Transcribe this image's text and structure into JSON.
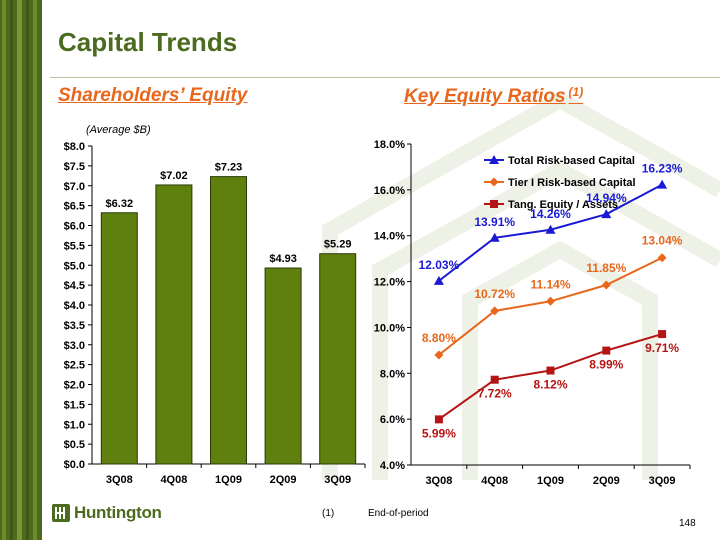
{
  "page": {
    "title": "Capital Trends",
    "page_number": "148",
    "footnote_marker": "(1)",
    "footnote_text": "End-of-period",
    "logo_text": "Huntington"
  },
  "colors": {
    "olive": "#5c7a1a",
    "bar_fill": "#5f7f0e",
    "title_green": "#4b6b1e",
    "orange": "#e8671c",
    "navy": "#1a1ad6",
    "dark_red": "#b51414",
    "band_green": "#4d6a1c"
  },
  "left_panel": {
    "heading": "Shareholders’ Equity",
    "subtitle": "(Average $B)"
  },
  "right_panel": {
    "heading": "Key Equity Ratios",
    "heading_sup": "(1)"
  },
  "chart_data": [
    {
      "type": "bar",
      "title": "Shareholders’ Equity",
      "subtitle": "(Average $B)",
      "categories": [
        "3Q08",
        "4Q08",
        "1Q09",
        "2Q09",
        "3Q09"
      ],
      "values": [
        6.32,
        7.02,
        7.23,
        4.93,
        5.29
      ],
      "data_labels": [
        "$6.32",
        "$7.02",
        "$7.23",
        "$4.93",
        "$5.29"
      ],
      "ylim": [
        0,
        8.0
      ],
      "yticks": [
        0,
        0.5,
        1.0,
        1.5,
        2.0,
        2.5,
        3.0,
        3.5,
        4.0,
        4.5,
        5.0,
        5.5,
        6.0,
        6.5,
        7.0,
        7.5,
        8.0
      ],
      "ytick_labels": [
        "$0.0",
        "$0.5",
        "$1.0",
        "$1.5",
        "$2.0",
        "$2.5",
        "$3.0",
        "$3.5",
        "$4.0",
        "$4.5",
        "$5.0",
        "$5.5",
        "$6.0",
        "$6.5",
        "$7.0",
        "$7.5",
        "$8.0"
      ],
      "xlabel": "",
      "ylabel": "",
      "grid": false
    },
    {
      "type": "line",
      "title": "Key Equity Ratios",
      "categories": [
        "3Q08",
        "4Q08",
        "1Q09",
        "2Q09",
        "3Q09"
      ],
      "ylim": [
        4.0,
        18.0
      ],
      "yticks": [
        4,
        6,
        8,
        10,
        12,
        14,
        16,
        18
      ],
      "ytick_labels": [
        "4.0%",
        "6.0%",
        "8.0%",
        "10.0%",
        "12.0%",
        "14.0%",
        "16.0%",
        "18.0%"
      ],
      "legend_position": "top-right",
      "grid": false,
      "series": [
        {
          "name": "Total Risk-based Capital",
          "color": "#1a1ad6",
          "marker": "triangle",
          "values": [
            12.03,
            13.91,
            14.26,
            14.94,
            16.23
          ],
          "labels": [
            "12.03%",
            "13.91%",
            "14.26%",
            "14.94%",
            "16.23%"
          ]
        },
        {
          "name": "Tier I Risk-based Capital",
          "color": "#e8671c",
          "marker": "diamond",
          "values": [
            8.8,
            10.72,
            11.14,
            11.85,
            13.04
          ],
          "labels": [
            "8.80%",
            "10.72%",
            "11.14%",
            "11.85%",
            "13.04%"
          ]
        },
        {
          "name": "Tang. Equity / Assets",
          "color": "#b51414",
          "marker": "square",
          "values": [
            5.99,
            7.72,
            8.12,
            8.99,
            9.71
          ],
          "labels": [
            "5.99%",
            "7.72%",
            "8.12%",
            "8.99%",
            "9.71%"
          ]
        }
      ]
    }
  ]
}
